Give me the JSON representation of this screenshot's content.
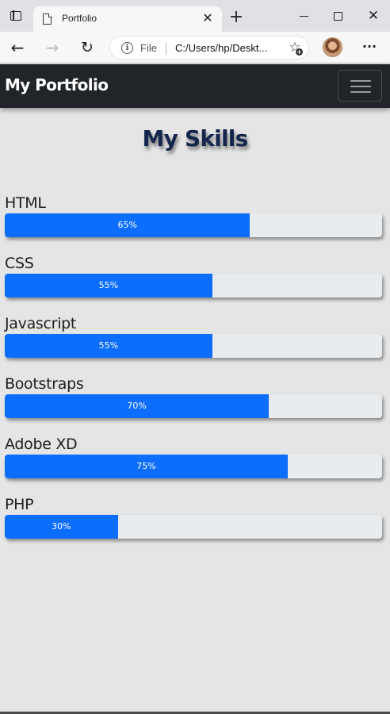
{
  "browser": {
    "tab_title": "Portfolio",
    "close_tab_glyph": "✕",
    "new_tab_glyph": "+",
    "window_close_glyph": "✕",
    "address": {
      "scheme_label": "File",
      "url": "C:/Users/hp/Deskt..."
    },
    "icons": {
      "back": "←",
      "forward": "→",
      "refresh": "↻",
      "favorites": "☆",
      "favorites_plus": "+",
      "more": "···"
    }
  },
  "navbar": {
    "brand": "My Portfolio"
  },
  "skills_section": {
    "title": "My Skills",
    "items": [
      {
        "name": "HTML",
        "percent": 65,
        "label": "65%"
      },
      {
        "name": "CSS",
        "percent": 55,
        "label": "55%"
      },
      {
        "name": "Javascript",
        "percent": 55,
        "label": "55%"
      },
      {
        "name": "Bootstraps",
        "percent": 70,
        "label": "70%"
      },
      {
        "name": "Adobe XD",
        "percent": 75,
        "label": "75%"
      },
      {
        "name": "PHP",
        "percent": 30,
        "label": "30%"
      }
    ]
  },
  "colors": {
    "navbar_bg": "#212529",
    "progress_fill": "#0d6efd",
    "progress_track": "#e9ecef",
    "page_bg": "#e5e5e5",
    "title_color": "#15264d"
  }
}
